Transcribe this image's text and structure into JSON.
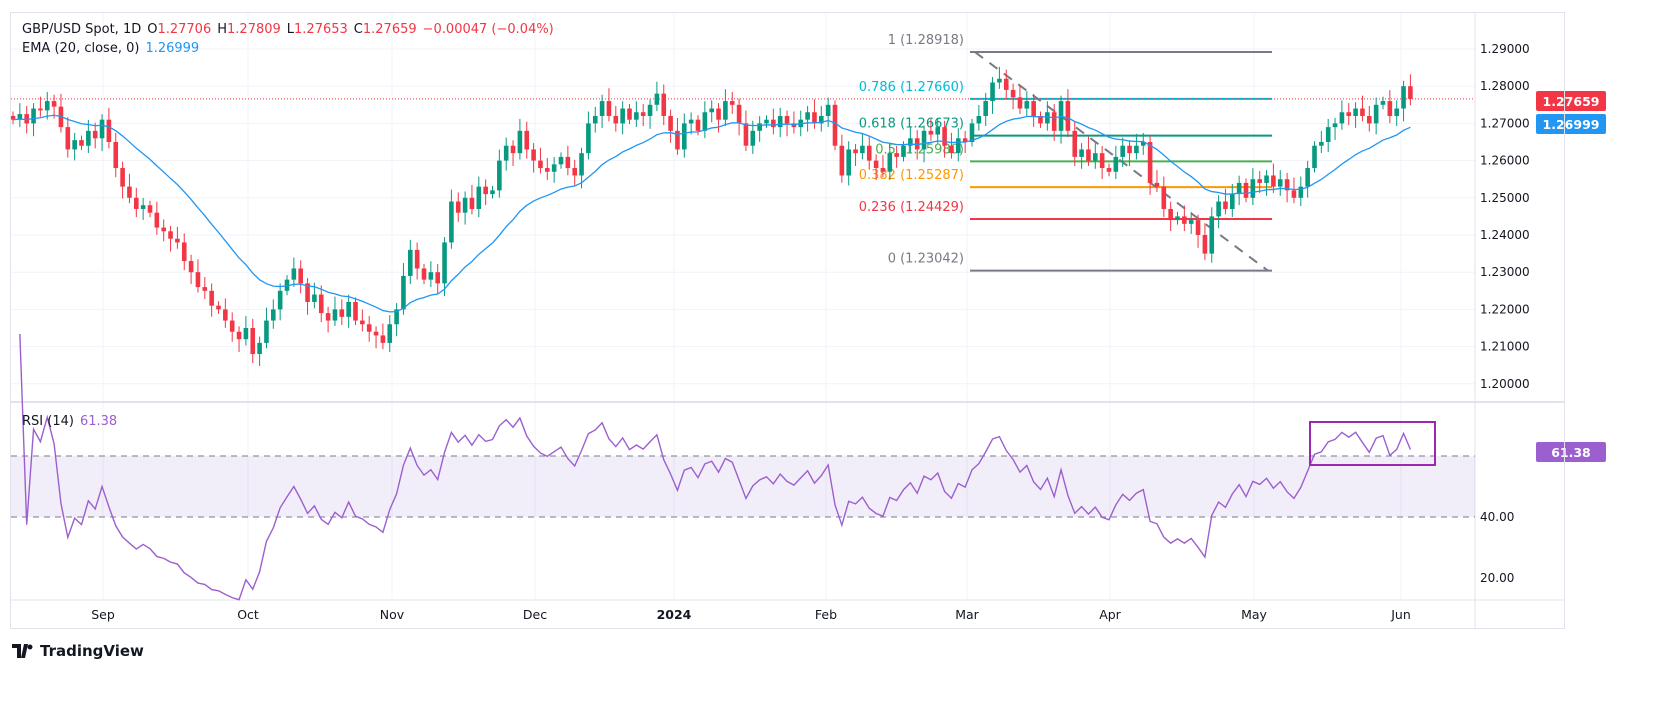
{
  "header": {
    "symbol": "GBP/USD Spot, 1D",
    "o_label": "O",
    "o": "1.27706",
    "h_label": "H",
    "h": "1.27809",
    "l_label": "L",
    "l": "1.27653",
    "c_label": "C",
    "c": "1.27659",
    "change": "−0.00047 (−0.04%)"
  },
  "ema": {
    "label": "EMA (20, close, 0)",
    "value": "1.26999",
    "color": "#2196f3"
  },
  "rsi": {
    "label": "RSI (14)",
    "value": "61.38",
    "color": "#9c5fcf",
    "bands": [
      40,
      60
    ],
    "ticks": [
      "40.00",
      "20.00"
    ]
  },
  "price_axis": {
    "ticks": [
      "1.29000",
      "1.28000",
      "1.27000",
      "1.26000",
      "1.25000",
      "1.24000",
      "1.23000",
      "1.22000",
      "1.21000",
      "1.20000"
    ],
    "last_price": "1.27659",
    "ema_badge": "1.26999",
    "last_color": "#f23645"
  },
  "time_axis": [
    "Sep",
    "Oct",
    "Nov",
    "Dec",
    "2024",
    "Feb",
    "Mar",
    "Apr",
    "May",
    "Jun"
  ],
  "fib": [
    {
      "label": "1 (1.28918)",
      "level": 1.28918,
      "color": "#787b86"
    },
    {
      "label": "0.786 (1.27660)",
      "level": 1.2766,
      "color": "#00bcd4"
    },
    {
      "label": "0.618 (1.26673)",
      "level": 1.26673,
      "color": "#089981"
    },
    {
      "label": "0.5 (1.25980)",
      "level": 1.2598,
      "color": "#4caf50"
    },
    {
      "label": "0.382 (1.25287)",
      "level": 1.25287,
      "color": "#ff9800"
    },
    {
      "label": "0.236 (1.24429)",
      "level": 1.24429,
      "color": "#f23645"
    },
    {
      "label": "0 (1.23042)",
      "level": 1.23042,
      "color": "#787b86"
    }
  ],
  "colors": {
    "up": "#089981",
    "down": "#f23645",
    "highlight_box": "#9c27b0"
  },
  "footer": {
    "brand": "TradingView"
  },
  "chart_data": {
    "type": "candlestick",
    "ylim": [
      1.2,
      1.29
    ],
    "closes": [
      1.271,
      1.2725,
      1.27,
      1.274,
      1.2735,
      1.276,
      1.2745,
      1.269,
      1.263,
      1.2655,
      1.264,
      1.268,
      1.266,
      1.271,
      1.265,
      1.258,
      1.253,
      1.25,
      1.247,
      1.248,
      1.246,
      1.242,
      1.241,
      1.239,
      1.238,
      1.233,
      1.23,
      1.226,
      1.225,
      1.221,
      1.22,
      1.217,
      1.214,
      1.212,
      1.215,
      1.208,
      1.211,
      1.217,
      1.22,
      1.225,
      1.228,
      1.231,
      1.227,
      1.222,
      1.224,
      1.219,
      1.217,
      1.22,
      1.218,
      1.222,
      1.217,
      1.216,
      1.214,
      1.213,
      1.211,
      1.216,
      1.22,
      1.229,
      1.236,
      1.231,
      1.228,
      1.23,
      1.227,
      1.238,
      1.249,
      1.246,
      1.25,
      1.247,
      1.253,
      1.251,
      1.252,
      1.26,
      1.264,
      1.262,
      1.268,
      1.263,
      1.26,
      1.258,
      1.257,
      1.259,
      1.261,
      1.258,
      1.256,
      1.262,
      1.27,
      1.272,
      1.276,
      1.272,
      1.27,
      1.274,
      1.271,
      1.273,
      1.272,
      1.275,
      1.278,
      1.272,
      1.268,
      1.263,
      1.27,
      1.271,
      1.268,
      1.273,
      1.274,
      1.271,
      1.276,
      1.275,
      1.27,
      1.264,
      1.268,
      1.27,
      1.271,
      1.269,
      1.272,
      1.27,
      1.269,
      1.271,
      1.273,
      1.27,
      1.272,
      1.275,
      1.264,
      1.256,
      1.263,
      1.262,
      1.264,
      1.26,
      1.258,
      1.257,
      1.262,
      1.261,
      1.264,
      1.266,
      1.263,
      1.268,
      1.267,
      1.269,
      1.264,
      1.262,
      1.266,
      1.265,
      1.27,
      1.272,
      1.276,
      1.281,
      1.282,
      1.279,
      1.277,
      1.274,
      1.276,
      1.272,
      1.27,
      1.273,
      1.268,
      1.276,
      1.268,
      1.261,
      1.263,
      1.26,
      1.262,
      1.258,
      1.257,
      1.261,
      1.264,
      1.262,
      1.264,
      1.265,
      1.254,
      1.253,
      1.247,
      1.244,
      1.245,
      1.243,
      1.244,
      1.24,
      1.235,
      1.245,
      1.249,
      1.247,
      1.251,
      1.254,
      1.25,
      1.255,
      1.254,
      1.256,
      1.253,
      1.255,
      1.252,
      1.25,
      1.253,
      1.258,
      1.264,
      1.265,
      1.269,
      1.27,
      1.273,
      1.272,
      1.274,
      1.272,
      1.27,
      1.275,
      1.276,
      1.272,
      1.274,
      1.28,
      1.2766
    ]
  }
}
